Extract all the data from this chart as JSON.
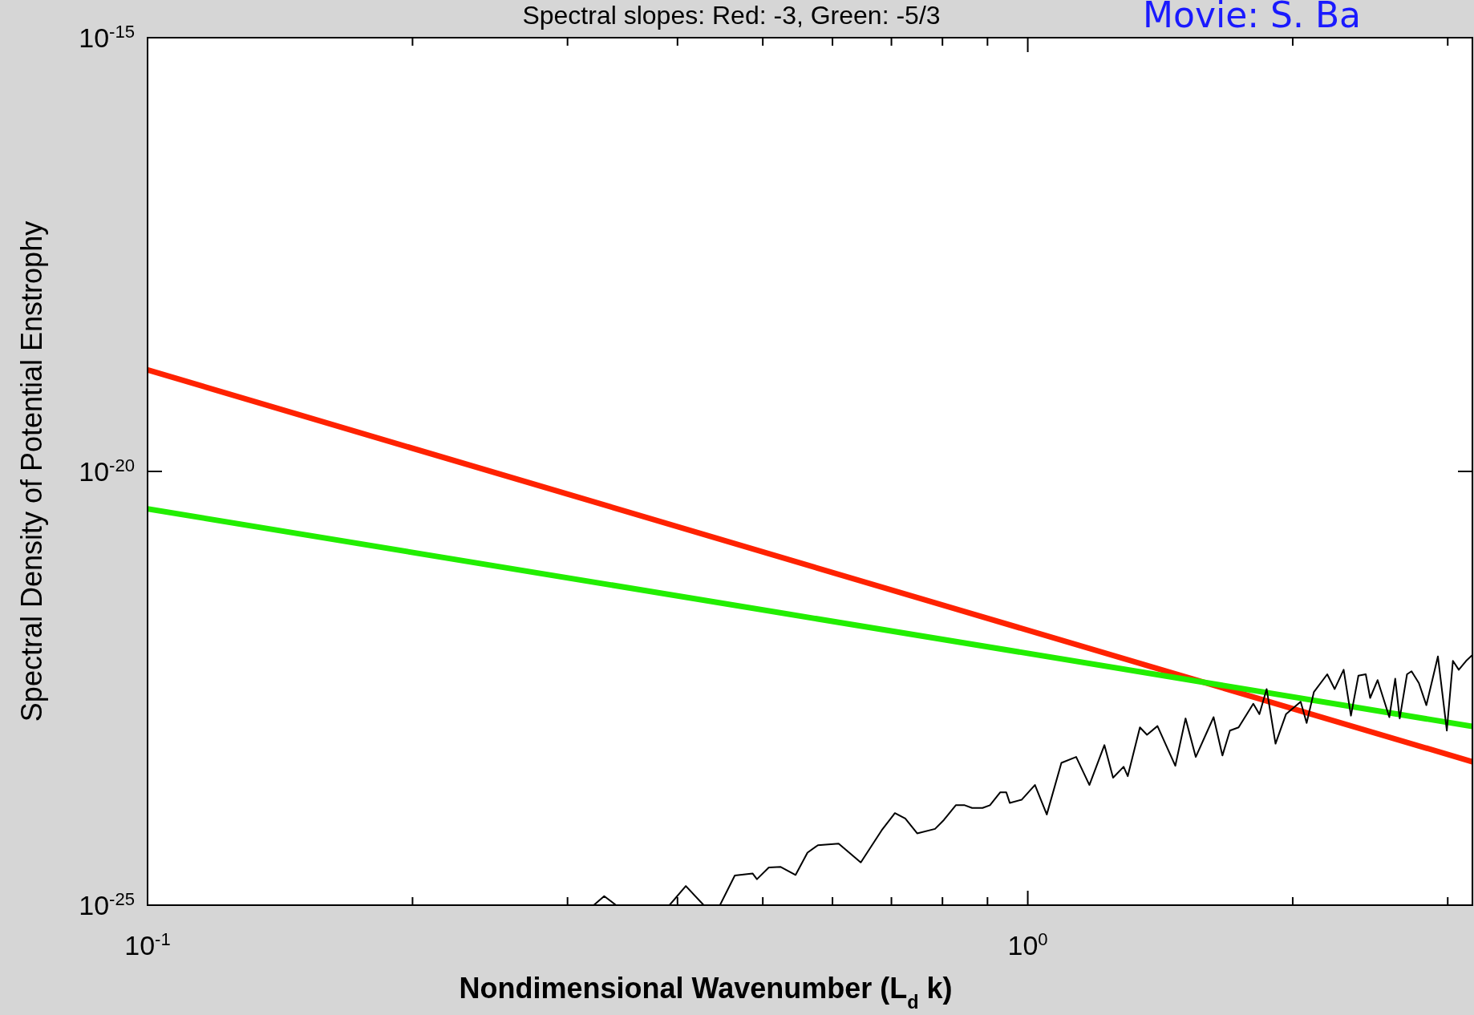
{
  "chart_data": {
    "type": "line",
    "title": "Spectral slopes:  Red: -3, Green: -5/3",
    "xlabel": "Nondimensional Wavenumber (L$_{d}$ k)",
    "ylabel": "Spectral Density of Potential Enstrophy",
    "annotations": [
      "Movie: S. Ba"
    ],
    "log": "xy",
    "grid": false,
    "marker": "none",
    "line_style": "solid",
    "xlim": [
      0.1,
      3.2
    ],
    "ylim": [
      1e-25,
      1e-15
    ],
    "xticks": [
      {
        "value": 0.1,
        "label": "10$^{-1}$"
      },
      {
        "value": 0.2,
        "label": null
      },
      {
        "value": 0.3,
        "label": null
      },
      {
        "value": 0.4,
        "label": null
      },
      {
        "value": 0.5,
        "label": null
      },
      {
        "value": 0.6,
        "label": null
      },
      {
        "value": 0.7,
        "label": null
      },
      {
        "value": 0.8,
        "label": null
      },
      {
        "value": 0.9,
        "label": null
      },
      {
        "value": 1,
        "label": "10$^{0}$"
      },
      {
        "value": 2,
        "label": null
      },
      {
        "value": 3,
        "label": null
      }
    ],
    "yticks": [
      {
        "value": 1e-25,
        "label": "10$^{-25}$"
      },
      {
        "value": 1e-20,
        "label": "10$^{-20}$"
      },
      {
        "value": 1e-15,
        "label": "10$^{-15}$"
      }
    ],
    "series": [
      {
        "color": "#ff2200",
        "x": [
          0.1,
          3.2
        ],
        "values": [
          1.48e-19,
          4.5e-24
        ]
      },
      {
        "color": "#22ee00",
        "x": [
          0.1,
          3.2
        ],
        "values": [
          3.7e-21,
          1.15e-23
        ]
      },
      {
        "color": "#000000",
        "x": [
          0.3213,
          0.3302,
          0.3406,
          0.36,
          0.3917,
          0.4088,
          0.4284,
          0.44,
          0.447,
          0.4647,
          0.4868,
          0.4924,
          0.5079,
          0.524,
          0.5448,
          0.562,
          0.5775,
          0.6097,
          0.6461,
          0.6823,
          0.7064,
          0.7258,
          0.7488,
          0.7846,
          0.803,
          0.8284,
          0.8479,
          0.8645,
          0.8884,
          0.9058,
          0.9307,
          0.9454,
          0.954,
          0.984,
          1.019,
          1.051,
          1.092,
          1.135,
          1.175,
          1.222,
          1.25,
          1.285,
          1.299,
          1.341,
          1.366,
          1.404,
          1.471,
          1.511,
          1.552,
          1.626,
          1.664,
          1.697,
          1.736,
          1.804,
          1.833,
          1.868,
          1.912,
          1.965,
          2.042,
          2.074,
          2.114,
          2.189,
          2.232,
          2.285,
          2.329,
          2.375,
          2.421,
          2.449,
          2.497,
          2.575,
          2.615,
          2.646,
          2.697,
          2.729,
          2.782,
          2.837,
          2.924,
          2.993,
          3.041,
          3.088,
          3.148,
          3.2
        ],
        "values": [
          1e-25,
          1.27e-25,
          1e-25,
          null,
          1e-25,
          1.66e-25,
          1e-25,
          null,
          1e-25,
          2.2e-25,
          2.32e-25,
          1.99e-25,
          2.72e-25,
          2.76e-25,
          2.23e-25,
          4.03e-25,
          4.91e-25,
          5.11e-25,
          3.11e-25,
          7.28e-25,
          1.15e-24,
          1e-24,
          6.73e-25,
          7.57e-25,
          9.6e-25,
          1.42e-24,
          1.42e-24,
          1.32e-24,
          1.32e-24,
          1.42e-24,
          2e-24,
          2e-24,
          1.51e-24,
          1.64e-24,
          2.43e-24,
          1.11e-24,
          4.37e-24,
          5.11e-24,
          2.43e-24,
          7e-24,
          2.95e-24,
          3.94e-24,
          3.07e-24,
          1.12e-23,
          9.2e-24,
          1.16e-23,
          4.04e-24,
          1.42e-23,
          5.11e-24,
          1.47e-23,
          5.31e-24,
          1.03e-23,
          1.12e-23,
          2.1e-23,
          1.59e-23,
          3.1e-23,
          7.27e-24,
          1.59e-23,
          2.21e-23,
          1.26e-23,
          2.87e-23,
          4.59e-23,
          3.1e-23,
          5.17e-23,
          1.53e-23,
          4.42e-23,
          4.59e-23,
          2.45e-23,
          3.93e-23,
          1.47e-23,
          4.08e-23,
          1.42e-23,
          4.59e-23,
          4.97e-23,
          3.63e-23,
          2.02e-23,
          7.36e-23,
          1.03e-23,
          6.55e-23,
          5.17e-23,
          6.55e-23,
          7.66e-23
        ]
      }
    ]
  }
}
